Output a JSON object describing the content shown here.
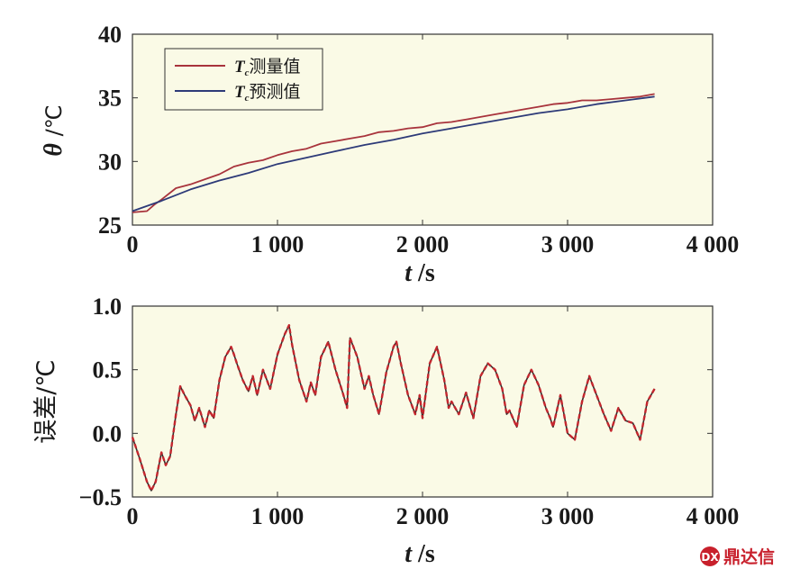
{
  "chart_data": [
    {
      "type": "line",
      "xlabel_var": "t",
      "xlabel_unit": " /s",
      "ylabel_var": "θ",
      "ylabel_unit": " /℃",
      "xlim": [
        0,
        4000
      ],
      "ylim": [
        25,
        40
      ],
      "xticks": [
        0,
        1000,
        2000,
        3000,
        4000
      ],
      "xtick_labels": [
        "0",
        "1 000",
        "2 000",
        "3 000",
        "4 000"
      ],
      "yticks": [
        25,
        30,
        35,
        40
      ],
      "ytick_labels": [
        "25",
        "30",
        "35",
        "40"
      ],
      "grid": false,
      "legend_position": "top-left",
      "background": "#fafae6",
      "series": [
        {
          "name": "测量值",
          "legend_var": "T",
          "legend_sub": "c",
          "color": "#a8333c",
          "x": [
            0,
            100,
            150,
            200,
            300,
            400,
            500,
            600,
            700,
            800,
            900,
            1000,
            1100,
            1200,
            1300,
            1400,
            1500,
            1600,
            1700,
            1800,
            1900,
            2000,
            2100,
            2200,
            2300,
            2400,
            2500,
            2600,
            2700,
            2800,
            2900,
            3000,
            3100,
            3200,
            3300,
            3400,
            3500,
            3600
          ],
          "y": [
            26.0,
            26.1,
            26.6,
            27.0,
            27.9,
            28.2,
            28.6,
            29.0,
            29.6,
            29.9,
            30.1,
            30.5,
            30.8,
            31.0,
            31.4,
            31.6,
            31.8,
            32.0,
            32.3,
            32.4,
            32.6,
            32.7,
            33.0,
            33.1,
            33.3,
            33.5,
            33.7,
            33.9,
            34.1,
            34.3,
            34.5,
            34.6,
            34.8,
            34.8,
            34.9,
            35.0,
            35.1,
            35.3
          ]
        },
        {
          "name": "预测值",
          "legend_var": "T",
          "legend_sub": "c",
          "color": "#2d3a78",
          "x": [
            0,
            200,
            400,
            600,
            800,
            1000,
            1200,
            1400,
            1600,
            1800,
            2000,
            2200,
            2400,
            2600,
            2800,
            3000,
            3200,
            3400,
            3600
          ],
          "y": [
            26.1,
            26.9,
            27.8,
            28.5,
            29.1,
            29.8,
            30.3,
            30.8,
            31.3,
            31.7,
            32.2,
            32.6,
            33.0,
            33.4,
            33.8,
            34.1,
            34.5,
            34.8,
            35.1
          ]
        }
      ]
    },
    {
      "type": "line",
      "xlabel_var": "t",
      "xlabel_unit": " /s",
      "ylabel": "误差/℃",
      "xlim": [
        0,
        4000
      ],
      "ylim": [
        -0.5,
        1.0
      ],
      "xticks": [
        0,
        1000,
        2000,
        3000,
        4000
      ],
      "xtick_labels": [
        "0",
        "1 000",
        "2 000",
        "3 000",
        "4 000"
      ],
      "yticks": [
        -0.5,
        0.0,
        0.5,
        1.0
      ],
      "ytick_labels": [
        "−0.5",
        "0.0",
        "0.5",
        "1.0"
      ],
      "grid": false,
      "background": "#fafae6",
      "series": [
        {
          "color": "#c4262e",
          "secondary_color": "#3a2a2a",
          "x": [
            0,
            50,
            100,
            130,
            160,
            200,
            230,
            260,
            300,
            330,
            360,
            400,
            430,
            460,
            500,
            530,
            560,
            600,
            640,
            680,
            700,
            720,
            760,
            800,
            830,
            860,
            900,
            950,
            1000,
            1050,
            1080,
            1100,
            1150,
            1200,
            1230,
            1260,
            1300,
            1350,
            1400,
            1450,
            1480,
            1500,
            1550,
            1600,
            1630,
            1660,
            1700,
            1750,
            1800,
            1820,
            1850,
            1900,
            1950,
            1980,
            2000,
            2050,
            2100,
            2150,
            2180,
            2200,
            2250,
            2300,
            2350,
            2400,
            2450,
            2500,
            2550,
            2580,
            2600,
            2650,
            2700,
            2750,
            2800,
            2850,
            2880,
            2900,
            2950,
            3000,
            3050,
            3100,
            3150,
            3200,
            3250,
            3300,
            3350,
            3400,
            3450,
            3500,
            3550,
            3600
          ],
          "y": [
            -0.03,
            -0.2,
            -0.38,
            -0.45,
            -0.38,
            -0.15,
            -0.25,
            -0.18,
            0.15,
            0.37,
            0.3,
            0.22,
            0.1,
            0.2,
            0.05,
            0.18,
            0.12,
            0.42,
            0.6,
            0.68,
            0.62,
            0.55,
            0.42,
            0.33,
            0.45,
            0.3,
            0.5,
            0.35,
            0.62,
            0.78,
            0.85,
            0.7,
            0.42,
            0.25,
            0.4,
            0.3,
            0.6,
            0.72,
            0.5,
            0.32,
            0.2,
            0.75,
            0.6,
            0.35,
            0.45,
            0.3,
            0.15,
            0.48,
            0.68,
            0.72,
            0.55,
            0.3,
            0.15,
            0.3,
            0.12,
            0.55,
            0.68,
            0.42,
            0.2,
            0.25,
            0.15,
            0.32,
            0.12,
            0.45,
            0.55,
            0.5,
            0.35,
            0.15,
            0.18,
            0.05,
            0.38,
            0.5,
            0.38,
            0.2,
            0.12,
            0.05,
            0.3,
            0.0,
            -0.05,
            0.25,
            0.45,
            0.3,
            0.15,
            0.02,
            0.2,
            0.1,
            0.08,
            -0.05,
            0.25,
            0.35
          ]
        }
      ]
    }
  ],
  "watermark": {
    "text": "鼎达信",
    "color": "#c8202c"
  }
}
